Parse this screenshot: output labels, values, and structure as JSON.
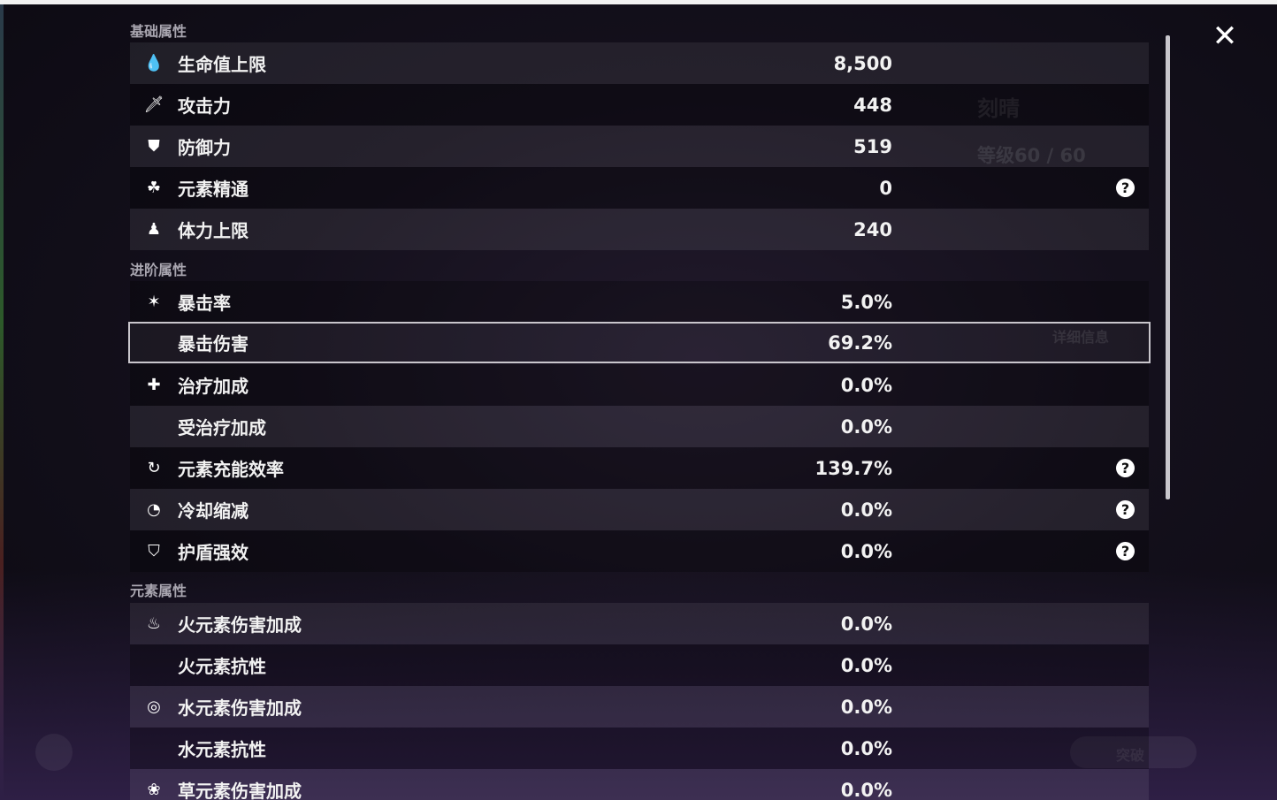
{
  "background": {
    "character_name": "刻晴",
    "level": "等级60 / 60",
    "details_button": "详细信息",
    "breakthrough_button": "突破"
  },
  "close_icon": "close-icon",
  "sections": [
    {
      "title": "基础属性",
      "rows": [
        {
          "icon": "hp-drop-icon",
          "label": "生命值上限",
          "value": "8,500",
          "help": false
        },
        {
          "icon": "sword-icon",
          "label": "攻击力",
          "value": "448",
          "help": false
        },
        {
          "icon": "shield-icon",
          "label": "防御力",
          "value": "519",
          "help": false
        },
        {
          "icon": "elemental-mastery-icon",
          "label": "元素精通",
          "value": "0",
          "help": true
        },
        {
          "icon": "stamina-icon",
          "label": "体力上限",
          "value": "240",
          "help": false
        }
      ]
    },
    {
      "title": "进阶属性",
      "rows": [
        {
          "icon": "crit-rate-icon",
          "label": "暴击率",
          "value": "5.0%",
          "help": false
        },
        {
          "icon": "",
          "label": "暴击伤害",
          "value": "69.2%",
          "help": false,
          "selected": true
        },
        {
          "icon": "healing-cross-icon",
          "label": "治疗加成",
          "value": "0.0%",
          "help": false
        },
        {
          "icon": "",
          "label": "受治疗加成",
          "value": "0.0%",
          "help": false
        },
        {
          "icon": "energy-recharge-icon",
          "label": "元素充能效率",
          "value": "139.7%",
          "help": true
        },
        {
          "icon": "cooldown-icon",
          "label": "冷却缩减",
          "value": "0.0%",
          "help": true
        },
        {
          "icon": "shield-strength-icon",
          "label": "护盾强效",
          "value": "0.0%",
          "help": true
        }
      ]
    },
    {
      "title": "元素属性",
      "rows": [
        {
          "icon": "pyro-icon",
          "label": "火元素伤害加成",
          "value": "0.0%",
          "help": false
        },
        {
          "icon": "",
          "label": "火元素抗性",
          "value": "0.0%",
          "help": false
        },
        {
          "icon": "hydro-icon",
          "label": "水元素伤害加成",
          "value": "0.0%",
          "help": false
        },
        {
          "icon": "",
          "label": "水元素抗性",
          "value": "0.0%",
          "help": false
        },
        {
          "icon": "dendro-icon",
          "label": "草元素伤害加成",
          "value": "0.0%",
          "help": false
        }
      ]
    }
  ]
}
